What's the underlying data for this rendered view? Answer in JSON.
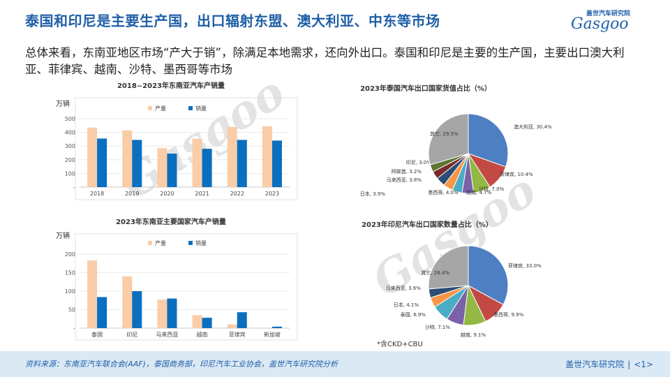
{
  "page": {
    "title": "泰国和印尼是主要生产国，出口辐射东盟、澳大利亚、中东等市场",
    "body": "总体来看，东南亚地区市场“产大于销”，除满足本地需求，还向外出口。泰国和印尼是主要的生产国，主要出口澳大利亚、菲律宾、越南、沙特、墨西哥等市场",
    "note": "*含CKD+CBU",
    "source": "资料来源：东南亚汽车联合会(AAF)，泰国商务部，印尼汽车工业协会，盖世汽车研究院分析",
    "org": "盖世汽车研究院",
    "page_no": "<1>",
    "logo_cn": "盖世汽车研究院",
    "logo_en": "Gasgoo",
    "watermark": "Gasgoo"
  },
  "colors": {
    "production": "#f9cda8",
    "sales": "#0b6fc0",
    "title": "#1f5fa8",
    "footer_bg": "#dbe9f5"
  },
  "chart_data": [
    {
      "type": "bar",
      "title": "2018~2023年东南亚汽车产销量",
      "ylabel": "万辆",
      "categories": [
        "2018",
        "2019",
        "2020",
        "2021",
        "2022",
        "2023"
      ],
      "series": [
        {
          "name": "产量",
          "values": [
            435,
            415,
            285,
            355,
            440,
            445
          ]
        },
        {
          "name": "销量",
          "values": [
            355,
            345,
            245,
            280,
            345,
            340
          ]
        }
      ],
      "yticks": [
        "-",
        "100",
        "200",
        "300",
        "400",
        "500"
      ],
      "ylim": [
        0,
        500
      ],
      "grid": true,
      "legend": "top"
    },
    {
      "type": "bar",
      "title": "2023年东南亚主要国家汽车产销量",
      "ylabel": "万辆",
      "categories": [
        "泰国",
        "印尼",
        "马来西亚",
        "越南",
        "菲律宾",
        "新加坡"
      ],
      "series": [
        {
          "name": "产量",
          "values": [
            183,
            140,
            77,
            35,
            10,
            0
          ]
        },
        {
          "name": "销量",
          "values": [
            84,
            100,
            80,
            28,
            43,
            4
          ]
        }
      ],
      "yticks": [
        "-",
        "50",
        "100",
        "150",
        "200"
      ],
      "ylim": [
        0,
        200
      ],
      "grid": true,
      "legend": "top"
    },
    {
      "type": "pie",
      "title": "2023年泰国汽车出口国家货值占比（%）",
      "slices": [
        {
          "label": "澳大利亚, 30.4%",
          "value": 30.4,
          "color": "#4f7fc3"
        },
        {
          "label": "菲律宾, 10.4%",
          "value": 10.4,
          "color": "#c34a44"
        },
        {
          "label": "沙特, 7.0%",
          "value": 7.0,
          "color": "#93b844"
        },
        {
          "label": "越南, 4.7%",
          "value": 4.7,
          "color": "#7b62a8"
        },
        {
          "label": "墨西哥, 4.0%",
          "value": 4.0,
          "color": "#4bacc6"
        },
        {
          "label": "日本, 3.9%",
          "value": 3.9,
          "color": "#f79646"
        },
        {
          "label": "马来西亚, 3.8%",
          "value": 3.8,
          "color": "#2c4d75"
        },
        {
          "label": "阿联酋, 3.2%",
          "value": 3.2,
          "color": "#772c2a"
        },
        {
          "label": "印尼, 3.0%",
          "value": 3.0,
          "color": "#5f7530"
        },
        {
          "label": "其它, 29.5%",
          "value": 29.5,
          "color": "#a6a6a6"
        }
      ]
    },
    {
      "type": "pie",
      "title": "2023年印尼汽车出口国家数量占比（%）",
      "slices": [
        {
          "label": "菲律宾, 33.0%",
          "value": 33.0,
          "color": "#4f7fc3"
        },
        {
          "label": "墨西哥, 9.9%",
          "value": 9.9,
          "color": "#c34a44"
        },
        {
          "label": "越南, 9.1%",
          "value": 9.1,
          "color": "#93b844"
        },
        {
          "label": "沙特, 7.1%",
          "value": 7.1,
          "color": "#7b62a8"
        },
        {
          "label": "泰国, 6.9%",
          "value": 6.9,
          "color": "#4bacc6"
        },
        {
          "label": "日本, 4.1%",
          "value": 4.1,
          "color": "#f79646"
        },
        {
          "label": "马来西亚, 3.6%",
          "value": 3.6,
          "color": "#2c4d75"
        },
        {
          "label": "其它, 26.4%",
          "value": 26.4,
          "color": "#a6a6a6"
        }
      ]
    }
  ]
}
